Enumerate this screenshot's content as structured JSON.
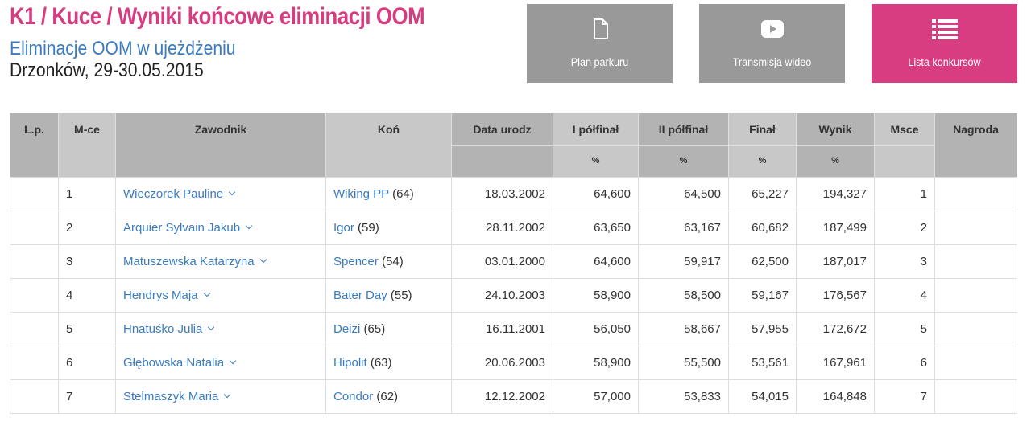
{
  "header": {
    "title": "K1 / Kuce / Wyniki końcowe eliminacji OOM",
    "subtitle": "Eliminacje OOM w ujeżdżeniu",
    "place_date": "Drzonków, 29-30.05.2015"
  },
  "buttons": [
    {
      "label": "Plan parkuru",
      "icon": "file-icon"
    },
    {
      "label": "Transmisja wideo",
      "icon": "play-icon"
    },
    {
      "label": "Lista konkursów",
      "icon": "list-icon"
    }
  ],
  "colors": {
    "accent": "#d63d80",
    "link": "#3a7bbf",
    "button_gray": "#999999"
  },
  "table": {
    "headers": [
      "L.p.",
      "M-ce",
      "Zawodnik",
      "Koń",
      "Data urodz",
      "I półfinał",
      "II półfinał",
      "Finał",
      "Wynik",
      "Msce",
      "Nagroda"
    ],
    "units": [
      "%",
      "%",
      "%",
      "%"
    ],
    "rows": [
      {
        "lp": "",
        "mce": "1",
        "rider": "Wieczorek Pauline",
        "horse": "Wiking PP",
        "horse_age": "(64)",
        "dob": "18.03.2002",
        "s1": "64,600",
        "s2": "64,500",
        "fin": "65,227",
        "wynik": "194,327",
        "msce": "1",
        "nagroda": ""
      },
      {
        "lp": "",
        "mce": "2",
        "rider": "Arquier Sylvain Jakub",
        "horse": "Igor",
        "horse_age": "(59)",
        "dob": "28.11.2002",
        "s1": "63,650",
        "s2": "63,167",
        "fin": "60,682",
        "wynik": "187,499",
        "msce": "2",
        "nagroda": ""
      },
      {
        "lp": "",
        "mce": "3",
        "rider": "Matuszewska Katarzyna",
        "horse": "Spencer",
        "horse_age": "(54)",
        "dob": "03.01.2000",
        "s1": "64,600",
        "s2": "59,917",
        "fin": "62,500",
        "wynik": "187,017",
        "msce": "3",
        "nagroda": ""
      },
      {
        "lp": "",
        "mce": "4",
        "rider": "Hendrys Maja",
        "horse": "Bater Day",
        "horse_age": "(55)",
        "dob": "24.10.2003",
        "s1": "58,900",
        "s2": "58,500",
        "fin": "59,167",
        "wynik": "176,567",
        "msce": "4",
        "nagroda": ""
      },
      {
        "lp": "",
        "mce": "5",
        "rider": "Hnatuśko Julia",
        "horse": "Deizi",
        "horse_age": "(65)",
        "dob": "16.11.2001",
        "s1": "56,050",
        "s2": "58,667",
        "fin": "57,955",
        "wynik": "172,672",
        "msce": "5",
        "nagroda": ""
      },
      {
        "lp": "",
        "mce": "6",
        "rider": "Głębowska Natalia",
        "horse": "Hipolit",
        "horse_age": "(63)",
        "dob": "20.06.2003",
        "s1": "58,900",
        "s2": "55,500",
        "fin": "53,561",
        "wynik": "167,961",
        "msce": "6",
        "nagroda": ""
      },
      {
        "lp": "",
        "mce": "7",
        "rider": "Stelmaszyk Maria",
        "horse": "Condor",
        "horse_age": "(62)",
        "dob": "12.12.2002",
        "s1": "57,000",
        "s2": "53,833",
        "fin": "54,015",
        "wynik": "164,848",
        "msce": "7",
        "nagroda": ""
      }
    ]
  }
}
